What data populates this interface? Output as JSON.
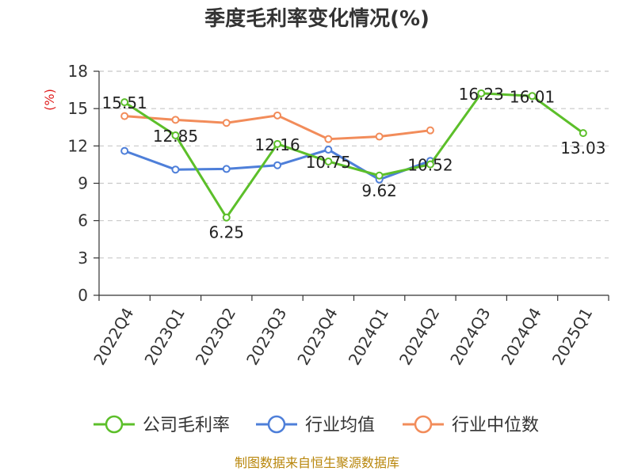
{
  "chart_data": {
    "type": "line",
    "title": "季度毛利率变化情况(%)",
    "y_unit": "(%)",
    "ylim": [
      0,
      18
    ],
    "yticks": [
      0,
      3,
      6,
      9,
      12,
      15,
      18
    ],
    "grid": true,
    "legend_position": "bottom",
    "categories": [
      "2022Q4",
      "2023Q1",
      "2023Q2",
      "2023Q3",
      "2023Q4",
      "2024Q1",
      "2024Q2",
      "2024Q3",
      "2024Q4",
      "2025Q1"
    ],
    "series": [
      {
        "name": "公司毛利率",
        "color": "#5cbf2a",
        "values": [
          15.51,
          12.85,
          6.25,
          12.16,
          10.75,
          9.62,
          10.52,
          16.23,
          16.01,
          13.03
        ],
        "labels": [
          "15.51",
          "12.85",
          "6.25",
          "12.16",
          "10.75",
          "9.62",
          "10.52",
          "16.23",
          "16.01",
          "13.03"
        ]
      },
      {
        "name": "行业均值",
        "color": "#4e7fd9",
        "values": [
          11.6,
          10.1,
          10.15,
          10.45,
          11.7,
          9.3,
          10.8,
          null,
          null,
          null
        ]
      },
      {
        "name": "行业中位数",
        "color": "#f28c5a",
        "values": [
          14.4,
          14.1,
          13.85,
          14.45,
          12.55,
          12.75,
          13.25,
          null,
          null,
          null
        ]
      }
    ]
  },
  "source_text": "制图数据来自恒生聚源数据库"
}
